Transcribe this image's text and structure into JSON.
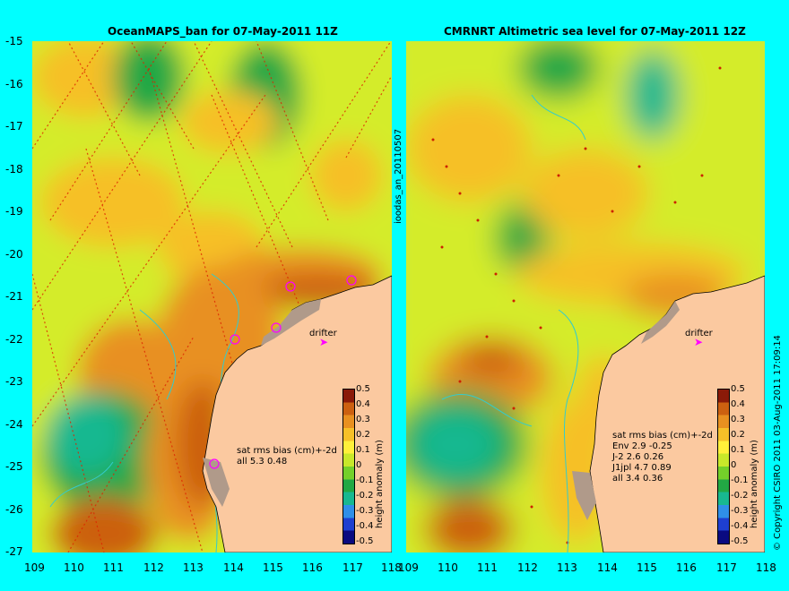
{
  "colors": {
    "background": "#00ffff",
    "land": "#fbc9a0",
    "shelf": "#b09a8a",
    "coast_contour": "#33cccc",
    "drifter": "#ff00ff",
    "track": "#dd2200"
  },
  "left_panel": {
    "title": "OceanMAPS_ban for 07-May-2011 11Z",
    "drifter_label": "drifter",
    "stats_lines": [
      "sat rms bias (cm)+-2d",
      "all 5.3 0.48"
    ],
    "colorbar_label": "height anomaly (m)"
  },
  "right_panel": {
    "title": "CMRNRT Altimetric sea level  for 07-May-2011 12Z",
    "drifter_label": "drifter",
    "stats_lines": [
      "sat rms bias (cm)+-2d",
      "Env   2.9 -0.25",
      "J-2   2.6 0.26",
      "J1jpl 4.7 0.89",
      "all 3.4 0.36"
    ],
    "colorbar_label": "height anomaly (m)"
  },
  "side_label": "ioodas_an_20110507",
  "copyright": "© Copyright CSIRO 2011   03-Aug-2011 17:09:14",
  "axes": {
    "lon_ticks": [
      "109",
      "110",
      "111",
      "112",
      "113",
      "114",
      "115",
      "116",
      "117",
      "118"
    ],
    "lat_ticks": [
      "-15",
      "-16",
      "-17",
      "-18",
      "-19",
      "-20",
      "-21",
      "-22",
      "-23",
      "-24",
      "-25",
      "-26",
      "-27"
    ]
  },
  "colorbar": {
    "ticks": [
      "0.5",
      "0.4",
      "0.3",
      "0.2",
      "0.1",
      "0",
      "-0.1",
      "-0.2",
      "-0.3",
      "-0.4",
      "-0.5"
    ],
    "range": [
      -0.5,
      0.5
    ],
    "colors": [
      "#0a0a80",
      "#1e3fd0",
      "#2f8fe8",
      "#18b890",
      "#22a844",
      "#74d02a",
      "#c8e82a",
      "#fff03a",
      "#f6c028",
      "#e89020",
      "#cc6010",
      "#8a1a08"
    ]
  }
}
